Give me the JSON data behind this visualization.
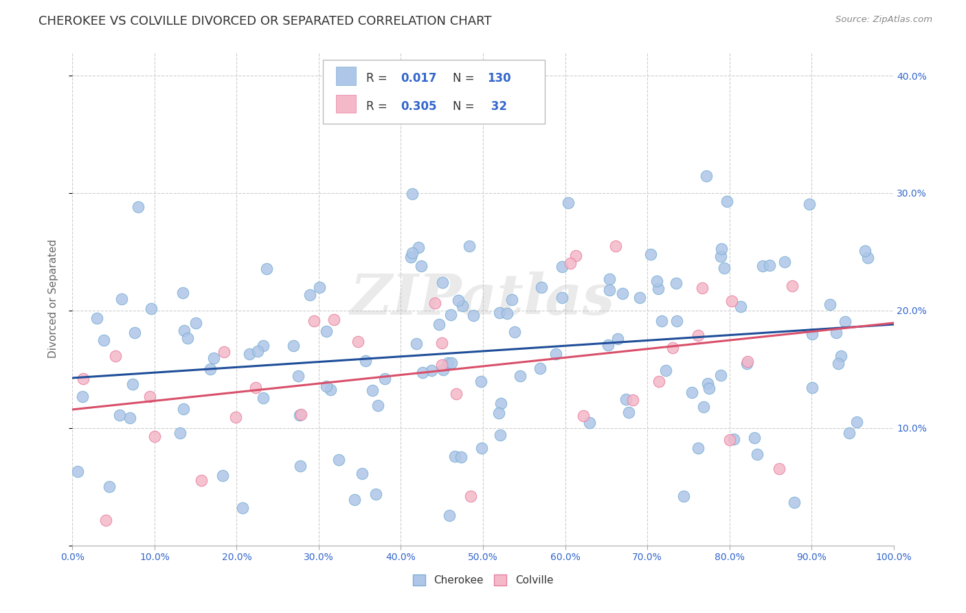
{
  "title": "CHEROKEE VS COLVILLE DIVORCED OR SEPARATED CORRELATION CHART",
  "source": "Source: ZipAtlas.com",
  "ylabel": "Divorced or Separated",
  "xlim": [
    0.0,
    1.0
  ],
  "ylim": [
    0.0,
    0.42
  ],
  "yticks": [
    0.0,
    0.1,
    0.2,
    0.3,
    0.4
  ],
  "yticklabels": [
    "",
    "10.0%",
    "20.0%",
    "30.0%",
    "40.0%"
  ],
  "cherokee_color": "#aec6e8",
  "cherokee_edge": "#7bafd4",
  "colville_color": "#f4b8c8",
  "colville_edge": "#e87fa0",
  "line_cherokee": "#1f4e99",
  "line_colville": "#d94f6a",
  "r_cherokee": 0.017,
  "n_cherokee": 130,
  "r_colville": 0.305,
  "n_colville": 32,
  "title_color": "#333333",
  "background_color": "#ffffff",
  "grid_color": "#cccccc",
  "tick_color": "#3366cc",
  "watermark": "ZIPatlas"
}
